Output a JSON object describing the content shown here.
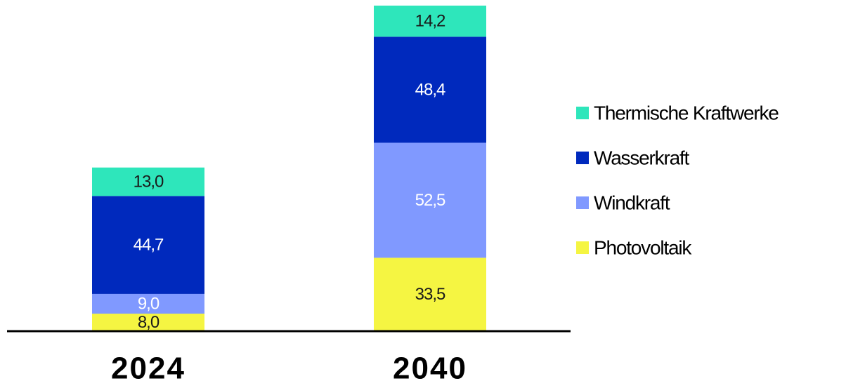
{
  "chart_data": {
    "type": "bar",
    "stacked": true,
    "categories": [
      "2024",
      "2040"
    ],
    "series": [
      {
        "name": "Photovoltaik",
        "values": [
          8.0,
          33.5
        ],
        "labels": [
          "8,0",
          "33,5"
        ],
        "color": "#f5f542",
        "label_color": "#1a1a1a"
      },
      {
        "name": "Windkraft",
        "values": [
          9.0,
          52.5
        ],
        "labels": [
          "9,0",
          "52,5"
        ],
        "color": "#8099ff",
        "label_color": "#ffffff"
      },
      {
        "name": "Wasserkraft",
        "values": [
          44.7,
          48.4
        ],
        "labels": [
          "44,7",
          "48,4"
        ],
        "color": "#0029bd",
        "label_color": "#ffffff"
      },
      {
        "name": "Thermische Kraftwerke",
        "values": [
          13.0,
          14.2
        ],
        "labels": [
          "13,0",
          "14,2"
        ],
        "color": "#2ee6bb",
        "label_color": "#1a1a1a"
      }
    ],
    "legend_order": [
      "Thermische Kraftwerke",
      "Wasserkraft",
      "Windkraft",
      "Photovoltaik"
    ],
    "legend_position": "right",
    "ylim": [
      0,
      148.6
    ],
    "grid": false,
    "title": "",
    "xlabel": "",
    "ylabel": ""
  }
}
